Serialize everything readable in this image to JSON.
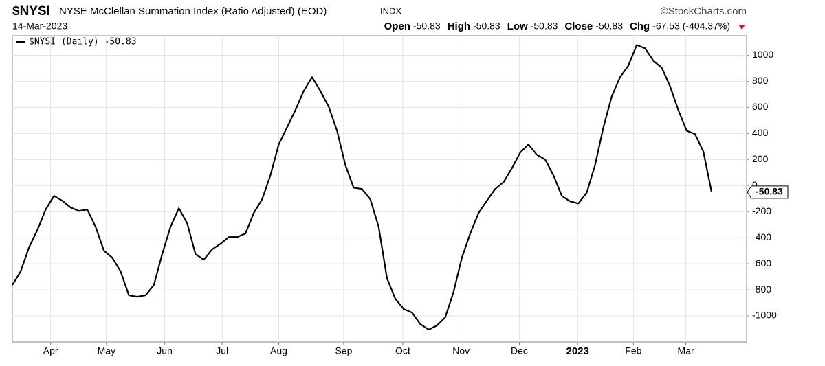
{
  "chart_data": {
    "type": "line",
    "symbol": "$NYSI",
    "title": "NYSE McClellan Summation Index (Ratio Adjusted) (EOD)",
    "exchange": "INDX",
    "brand": "©StockCharts.com",
    "date": "14-Mar-2023",
    "quote": [
      {
        "label": "Open",
        "value": "-50.83"
      },
      {
        "label": "High",
        "value": "-50.83"
      },
      {
        "label": "Low",
        "value": "-50.83"
      },
      {
        "label": "Close",
        "value": "-50.83"
      },
      {
        "label": "Chg",
        "value": "-67.53 (-404.37%)"
      }
    ],
    "series": [
      {
        "name": "$NYSI (Daily) -50.83",
        "color": "#000000",
        "values": [
          -763,
          -658,
          -474,
          -342,
          -184,
          -79,
          -116,
          -168,
          -195,
          -184,
          -316,
          -500,
          -553,
          -658,
          -842,
          -853,
          -842,
          -763,
          -526,
          -316,
          -174,
          -289,
          -526,
          -568,
          -489,
          -447,
          -395,
          -395,
          -368,
          -211,
          -105,
          79,
          316,
          447,
          579,
          726,
          832,
          726,
          605,
          421,
          158,
          -16,
          -26,
          -105,
          -316,
          -711,
          -868,
          -947,
          -974,
          -1063,
          -1105,
          -1074,
          -1011,
          -816,
          -553,
          -368,
          -211,
          -116,
          -26,
          26,
          132,
          253,
          316,
          237,
          200,
          79,
          -79,
          -121,
          -137,
          -53,
          158,
          447,
          684,
          832,
          921,
          1079,
          1053,
          958,
          905,
          763,
          579,
          421,
          395,
          263,
          -50.83
        ],
        "last_label": "-50.83"
      }
    ],
    "xlim": [
      0,
      88.2
    ],
    "xticks": [
      {
        "value": 4.6,
        "label": "Apr"
      },
      {
        "value": 11.3,
        "label": "May"
      },
      {
        "value": 18.3,
        "label": "Jun"
      },
      {
        "value": 25.2,
        "label": "Jul"
      },
      {
        "value": 32.0,
        "label": "Aug"
      },
      {
        "value": 39.8,
        "label": "Sep"
      },
      {
        "value": 46.9,
        "label": "Oct"
      },
      {
        "value": 53.9,
        "label": "Nov"
      },
      {
        "value": 60.9,
        "label": "Dec"
      },
      {
        "value": 67.9,
        "label": "2023"
      },
      {
        "value": 74.6,
        "label": "Feb"
      },
      {
        "value": 80.9,
        "label": "Mar"
      }
    ],
    "ylim": [
      -1200,
      1150
    ],
    "yticks": [
      -1000,
      -800,
      -600,
      -400,
      -200,
      0,
      200,
      400,
      600,
      800,
      1000
    ],
    "grid": true
  }
}
